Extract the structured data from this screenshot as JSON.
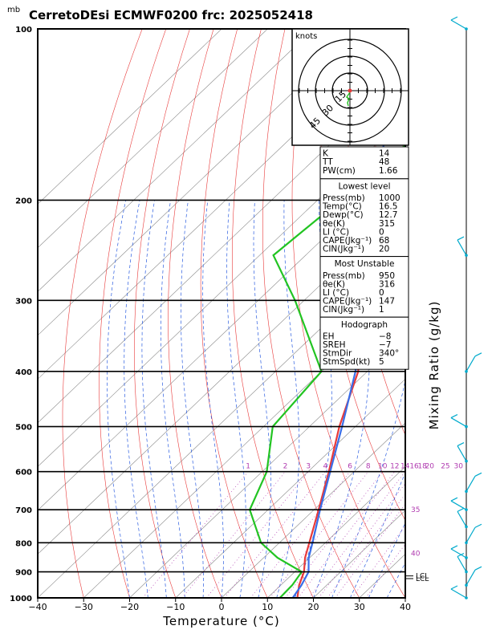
{
  "header": {
    "title": "CerretoDEsi ECMWF0200 frc: 2025052418",
    "unit_label": "mb"
  },
  "chart_data": {
    "type": "line",
    "title": "CerretoDEsi ECMWF0200 frc: 2025052418",
    "xlabel": "Temperature (°C)",
    "ylabel": "Mixing Ratio (g/kg)",
    "xlim": [
      -40,
      40
    ],
    "ylim": [
      1000,
      100
    ],
    "x_ticks": [
      -40,
      -30,
      -20,
      -10,
      0,
      10,
      20,
      30,
      40
    ],
    "pressure_levels": [
      100,
      200,
      300,
      400,
      500,
      600,
      700,
      800,
      900,
      1000
    ],
    "mixing_ratio_labels": [
      "1",
      "2",
      "3",
      "4",
      "6",
      "8",
      "10",
      "12",
      "14",
      "16",
      "18",
      "20",
      "25",
      "30"
    ],
    "side_labels": [
      "35",
      "40"
    ],
    "lcl_labels": [
      "LCL",
      "LCL"
    ],
    "series": [
      {
        "name": "Temperature",
        "color": "#e83a3a",
        "points": [
          [
            1000,
            16.5
          ],
          [
            950,
            14.0
          ],
          [
            900,
            12.0
          ],
          [
            850,
            9.0
          ],
          [
            800,
            6.5
          ],
          [
            700,
            1.0
          ],
          [
            600,
            -5.5
          ],
          [
            500,
            -13.5
          ],
          [
            400,
            -22.0
          ],
          [
            300,
            -37.5
          ],
          [
            250,
            -48.0
          ],
          [
            200,
            -46.5
          ],
          [
            150,
            -42.0
          ],
          [
            100,
            -39.0
          ]
        ]
      },
      {
        "name": "Dewpoint",
        "color": "#22c422",
        "points": [
          [
            1000,
            12.7
          ],
          [
            950,
            12.5
          ],
          [
            900,
            11.5
          ],
          [
            850,
            3.0
          ],
          [
            800,
            -4.0
          ],
          [
            700,
            -14.0
          ],
          [
            600,
            -19.0
          ],
          [
            500,
            -28.0
          ],
          [
            400,
            -30.0
          ],
          [
            300,
            -52.0
          ],
          [
            250,
            -67.0
          ],
          [
            200,
            -65.0
          ],
          [
            150,
            -63.0
          ],
          [
            100,
            -60.0
          ]
        ]
      },
      {
        "name": "Parcel",
        "color": "#3a6ee8",
        "points": [
          [
            1000,
            15.5
          ],
          [
            950,
            14.5
          ],
          [
            900,
            13.0
          ],
          [
            850,
            9.8
          ],
          [
            800,
            7.2
          ],
          [
            700,
            1.3
          ],
          [
            600,
            -5.2
          ],
          [
            500,
            -12.9
          ],
          [
            400,
            -22.6
          ],
          [
            300,
            -36.6
          ],
          [
            250,
            -45.6
          ],
          [
            200,
            -56.9
          ],
          [
            150,
            -71.5
          ],
          [
            120,
            -83.0
          ]
        ]
      }
    ],
    "wind_barbs_levels": [
      100,
      250,
      400,
      500,
      575,
      650,
      700,
      750,
      800,
      850,
      900,
      950,
      1000
    ],
    "hodograph": {
      "unit_label": "knots",
      "ring_labels": [
        "15",
        "30",
        "45"
      ]
    }
  },
  "indices": {
    "top": [
      {
        "label": "K",
        "value": "14"
      },
      {
        "label": "TT",
        "value": "48"
      },
      {
        "label": "PW(cm)",
        "value": "1.66"
      }
    ],
    "lowest": {
      "title": "Lowest level",
      "rows": [
        {
          "label": "Press(mb)",
          "value": "1000"
        },
        {
          "label": "Temp(°C)",
          "value": "16.5"
        },
        {
          "label": "Dewp(°C)",
          "value": "12.7"
        },
        {
          "label": "θe(K)",
          "value": "315"
        },
        {
          "label": "LI (°C)",
          "value": "0"
        },
        {
          "label": "CAPE(Jkg⁻¹)",
          "value": "68"
        },
        {
          "label": "CIN(Jkg⁻¹)",
          "value": "20"
        }
      ]
    },
    "unstable": {
      "title": "Most Unstable",
      "rows": [
        {
          "label": "Press(mb)",
          "value": "950"
        },
        {
          "label": "θe(K)",
          "value": "316"
        },
        {
          "label": "LI (°C)",
          "value": "0"
        },
        {
          "label": "CAPE(Jkg⁻¹)",
          "value": "147"
        },
        {
          "label": "CIN(Jkg⁻¹)",
          "value": "1"
        }
      ]
    },
    "hodo": {
      "title": "Hodograph",
      "rows": [
        {
          "label": "EH",
          "value": "−8"
        },
        {
          "label": "SREH",
          "value": "−7"
        },
        {
          "label": "StmDir",
          "value": "340°"
        },
        {
          "label": "StmSpd(kt)",
          "value": "5"
        }
      ]
    }
  },
  "colors": {
    "isotherm": "#888888",
    "dry_adiabat": "#e83a3a",
    "moist_adiabat": "#2a5ce0",
    "mixing_ratio": "#b03ab0",
    "barb": "#00aacc"
  }
}
